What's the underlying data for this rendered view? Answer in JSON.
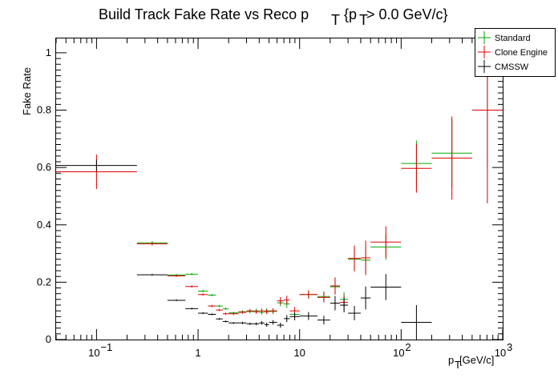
{
  "chart_data": {
    "type": "scatter",
    "title_main": "Build Track Fake Rate vs Reco p",
    "title_sub": "T",
    "title_tail": "{p",
    "title_tail_sub": "T",
    "title_end": " > 0.0 GeV/c}",
    "xlabel_main": "p",
    "xlabel_sub": "T",
    "xlabel_tail": " [GeV/c]",
    "ylabel": "Fake Rate",
    "xscale": "log",
    "xlim": [
      0.04,
      1000
    ],
    "ylim": [
      0,
      1.05
    ],
    "x_ticks": [
      {
        "value": 0.1,
        "base": "10",
        "exp": "−1"
      },
      {
        "value": 1,
        "base": "1",
        "exp": ""
      },
      {
        "value": 10,
        "base": "10",
        "exp": ""
      },
      {
        "value": 100,
        "base": "10",
        "exp": "2"
      },
      {
        "value": 1000,
        "base": "10",
        "exp": "3"
      }
    ],
    "y_ticks": [
      "0",
      "0.2",
      "0.4",
      "0.6",
      "0.8",
      "1"
    ],
    "y_tick_values": [
      0,
      0.2,
      0.4,
      0.6,
      0.8,
      1
    ],
    "legend_position": "top-right",
    "series": [
      {
        "name": "Standard",
        "color": "#00aa00",
        "points": [
          {
            "xlo": 0.25,
            "xhi": 0.5,
            "y": 0.337,
            "ey": 0.006
          },
          {
            "xlo": 0.5,
            "xhi": 0.75,
            "y": 0.225,
            "ey": 0.004
          },
          {
            "xlo": 0.75,
            "xhi": 1.0,
            "y": 0.228,
            "ey": 0.004
          },
          {
            "xlo": 1.0,
            "xhi": 1.25,
            "y": 0.169,
            "ey": 0.004
          },
          {
            "xlo": 1.25,
            "xhi": 1.5,
            "y": 0.155,
            "ey": 0.004
          },
          {
            "xlo": 1.5,
            "xhi": 1.75,
            "y": 0.117,
            "ey": 0.004
          },
          {
            "xlo": 1.75,
            "xhi": 2.0,
            "y": 0.107,
            "ey": 0.004
          },
          {
            "xlo": 2.0,
            "xhi": 2.5,
            "y": 0.093,
            "ey": 0.004
          },
          {
            "xlo": 2.5,
            "xhi": 3.0,
            "y": 0.097,
            "ey": 0.005
          },
          {
            "xlo": 3.0,
            "xhi": 3.5,
            "y": 0.098,
            "ey": 0.006
          },
          {
            "xlo": 3.5,
            "xhi": 4.0,
            "y": 0.1,
            "ey": 0.007
          },
          {
            "xlo": 4.0,
            "xhi": 4.5,
            "y": 0.095,
            "ey": 0.008
          },
          {
            "xlo": 4.5,
            "xhi": 5.0,
            "y": 0.1,
            "ey": 0.009
          },
          {
            "xlo": 5.0,
            "xhi": 6.0,
            "y": 0.098,
            "ey": 0.009
          },
          {
            "xlo": 6.0,
            "xhi": 7.0,
            "y": 0.128,
            "ey": 0.012
          },
          {
            "xlo": 7.0,
            "xhi": 8.0,
            "y": 0.124,
            "ey": 0.014
          },
          {
            "xlo": 8.0,
            "xhi": 10.0,
            "y": 0.088,
            "ey": 0.013
          },
          {
            "xlo": 10.0,
            "xhi": 15.0,
            "y": 0.157,
            "ey": 0.014
          },
          {
            "xlo": 15.0,
            "xhi": 20.0,
            "y": 0.15,
            "ey": 0.018
          },
          {
            "xlo": 20.0,
            "xhi": 25.0,
            "y": 0.184,
            "ey": 0.025
          },
          {
            "xlo": 25.0,
            "xhi": 30.0,
            "y": 0.14,
            "ey": 0.025
          },
          {
            "xlo": 30.0,
            "xhi": 40.0,
            "y": 0.28,
            "ey": 0.04
          },
          {
            "xlo": 40.0,
            "xhi": 50.0,
            "y": 0.277,
            "ey": 0.045
          },
          {
            "xlo": 50.0,
            "xhi": 100.0,
            "y": 0.323,
            "ey": 0.045
          },
          {
            "xlo": 100.0,
            "xhi": 200.0,
            "y": 0.614,
            "ey": 0.08
          },
          {
            "xlo": 200.0,
            "xhi": 500.0,
            "y": 0.65,
            "ey": 0.12
          },
          {
            "xlo": 500.0,
            "xhi": 1000.0,
            "y": 0.8,
            "ey": 0.2
          }
        ]
      },
      {
        "name": "Clone Engine",
        "color": "#dd0000",
        "points": [
          {
            "xlo": 0.04,
            "xhi": 0.25,
            "y": 0.585,
            "ey": 0.06
          },
          {
            "xlo": 0.25,
            "xhi": 0.5,
            "y": 0.334,
            "ey": 0.006
          },
          {
            "xlo": 0.5,
            "xhi": 0.75,
            "y": 0.222,
            "ey": 0.004
          },
          {
            "xlo": 0.75,
            "xhi": 1.0,
            "y": 0.185,
            "ey": 0.004
          },
          {
            "xlo": 1.0,
            "xhi": 1.25,
            "y": 0.157,
            "ey": 0.004
          },
          {
            "xlo": 1.25,
            "xhi": 1.5,
            "y": 0.117,
            "ey": 0.004
          },
          {
            "xlo": 1.5,
            "xhi": 1.75,
            "y": 0.103,
            "ey": 0.004
          },
          {
            "xlo": 1.75,
            "xhi": 2.0,
            "y": 0.09,
            "ey": 0.004
          },
          {
            "xlo": 2.0,
            "xhi": 2.5,
            "y": 0.09,
            "ey": 0.004
          },
          {
            "xlo": 2.5,
            "xhi": 3.0,
            "y": 0.095,
            "ey": 0.005
          },
          {
            "xlo": 3.0,
            "xhi": 3.5,
            "y": 0.1,
            "ey": 0.006
          },
          {
            "xlo": 3.5,
            "xhi": 4.0,
            "y": 0.097,
            "ey": 0.007
          },
          {
            "xlo": 4.0,
            "xhi": 4.5,
            "y": 0.1,
            "ey": 0.008
          },
          {
            "xlo": 4.5,
            "xhi": 5.0,
            "y": 0.097,
            "ey": 0.009
          },
          {
            "xlo": 5.0,
            "xhi": 6.0,
            "y": 0.1,
            "ey": 0.009
          },
          {
            "xlo": 6.0,
            "xhi": 7.0,
            "y": 0.135,
            "ey": 0.013
          },
          {
            "xlo": 7.0,
            "xhi": 8.0,
            "y": 0.138,
            "ey": 0.015
          },
          {
            "xlo": 8.0,
            "xhi": 10.0,
            "y": 0.1,
            "ey": 0.013
          },
          {
            "xlo": 10.0,
            "xhi": 15.0,
            "y": 0.157,
            "ey": 0.014
          },
          {
            "xlo": 15.0,
            "xhi": 20.0,
            "y": 0.147,
            "ey": 0.018
          },
          {
            "xlo": 20.0,
            "xhi": 25.0,
            "y": 0.187,
            "ey": 0.03
          },
          {
            "xlo": 25.0,
            "xhi": 30.0,
            "y": 0.13,
            "ey": 0.025
          },
          {
            "xlo": 30.0,
            "xhi": 40.0,
            "y": 0.283,
            "ey": 0.045
          },
          {
            "xlo": 40.0,
            "xhi": 50.0,
            "y": 0.285,
            "ey": 0.06
          },
          {
            "xlo": 50.0,
            "xhi": 100.0,
            "y": 0.34,
            "ey": 0.055
          },
          {
            "xlo": 100.0,
            "xhi": 200.0,
            "y": 0.597,
            "ey": 0.085
          },
          {
            "xlo": 200.0,
            "xhi": 500.0,
            "y": 0.633,
            "ey": 0.145
          },
          {
            "xlo": 500.0,
            "xhi": 1000.0,
            "y": 0.8,
            "ey": 0.325
          }
        ]
      },
      {
        "name": "CMSSW",
        "color": "#000000",
        "points": [
          {
            "xlo": 0.04,
            "xhi": 0.25,
            "y": 0.607,
            "ey": 0.02
          },
          {
            "xlo": 0.25,
            "xhi": 0.5,
            "y": 0.226,
            "ey": 0.003
          },
          {
            "xlo": 0.5,
            "xhi": 0.75,
            "y": 0.137,
            "ey": 0.003
          },
          {
            "xlo": 0.75,
            "xhi": 1.0,
            "y": 0.108,
            "ey": 0.003
          },
          {
            "xlo": 1.0,
            "xhi": 1.25,
            "y": 0.092,
            "ey": 0.003
          },
          {
            "xlo": 1.25,
            "xhi": 1.5,
            "y": 0.088,
            "ey": 0.003
          },
          {
            "xlo": 1.5,
            "xhi": 1.75,
            "y": 0.072,
            "ey": 0.003
          },
          {
            "xlo": 1.75,
            "xhi": 2.0,
            "y": 0.063,
            "ey": 0.003
          },
          {
            "xlo": 2.0,
            "xhi": 2.5,
            "y": 0.058,
            "ey": 0.003
          },
          {
            "xlo": 2.5,
            "xhi": 3.0,
            "y": 0.058,
            "ey": 0.004
          },
          {
            "xlo": 3.0,
            "xhi": 3.5,
            "y": 0.055,
            "ey": 0.004
          },
          {
            "xlo": 3.5,
            "xhi": 4.0,
            "y": 0.055,
            "ey": 0.005
          },
          {
            "xlo": 4.0,
            "xhi": 4.5,
            "y": 0.058,
            "ey": 0.006
          },
          {
            "xlo": 4.5,
            "xhi": 5.0,
            "y": 0.052,
            "ey": 0.007
          },
          {
            "xlo": 5.0,
            "xhi": 6.0,
            "y": 0.06,
            "ey": 0.008
          },
          {
            "xlo": 6.0,
            "xhi": 7.0,
            "y": 0.05,
            "ey": 0.009
          },
          {
            "xlo": 7.0,
            "xhi": 8.0,
            "y": 0.073,
            "ey": 0.012
          },
          {
            "xlo": 8.0,
            "xhi": 10.0,
            "y": 0.08,
            "ey": 0.013
          },
          {
            "xlo": 10.0,
            "xhi": 15.0,
            "y": 0.082,
            "ey": 0.014
          },
          {
            "xlo": 15.0,
            "xhi": 20.0,
            "y": 0.068,
            "ey": 0.015
          },
          {
            "xlo": 20.0,
            "xhi": 25.0,
            "y": 0.127,
            "ey": 0.025
          },
          {
            "xlo": 25.0,
            "xhi": 30.0,
            "y": 0.12,
            "ey": 0.025
          },
          {
            "xlo": 30.0,
            "xhi": 40.0,
            "y": 0.092,
            "ey": 0.025
          },
          {
            "xlo": 40.0,
            "xhi": 50.0,
            "y": 0.145,
            "ey": 0.04
          },
          {
            "xlo": 50.0,
            "xhi": 100.0,
            "y": 0.183,
            "ey": 0.045
          },
          {
            "xlo": 100.0,
            "xhi": 200.0,
            "y": 0.06,
            "ey": 0.06
          }
        ]
      }
    ]
  }
}
